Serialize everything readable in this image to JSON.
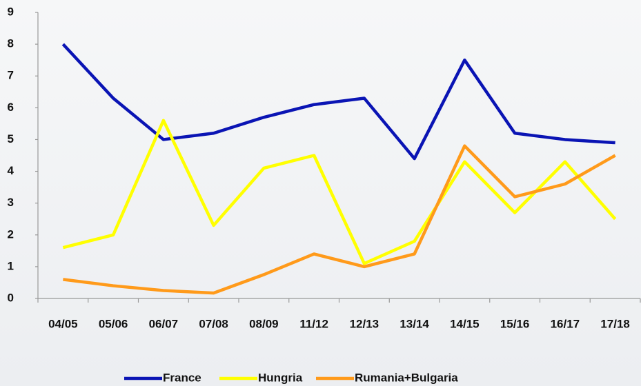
{
  "chart_data": {
    "type": "line",
    "categories": [
      "04/05",
      "05/06",
      "06/07",
      "07/08",
      "08/09",
      "11/12",
      "12/13",
      "13/14",
      "14/15",
      "15/16",
      "16/17",
      "17/18"
    ],
    "series": [
      {
        "name": "France",
        "color": "#0a14b4",
        "values": [
          8,
          6.3,
          5.0,
          5.2,
          5.7,
          6.1,
          6.3,
          4.4,
          7.5,
          5.2,
          5.0,
          4.9
        ]
      },
      {
        "name": "Hungria",
        "color": "#ffff00",
        "values": [
          1.6,
          2.0,
          5.6,
          2.3,
          4.1,
          4.5,
          1.1,
          1.8,
          4.3,
          2.7,
          4.3,
          2.5
        ]
      },
      {
        "name": "Rumania+Bulgaria",
        "color": "#ff9a1a",
        "values": [
          0.6,
          0.4,
          0.25,
          0.17,
          0.75,
          1.4,
          1.0,
          1.4,
          4.8,
          3.2,
          3.6,
          4.5
        ]
      }
    ],
    "ylim": [
      0,
      9
    ],
    "yticks": [
      0,
      1,
      2,
      3,
      4,
      5,
      6,
      7,
      8,
      9
    ],
    "grid": false,
    "legend": "bottom"
  }
}
